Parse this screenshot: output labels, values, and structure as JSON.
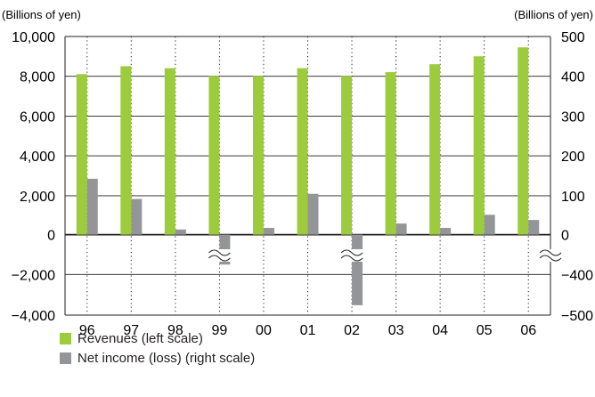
{
  "chart_data": {
    "type": "bar",
    "categories": [
      "96",
      "97",
      "98",
      "99",
      "00",
      "01",
      "02",
      "03",
      "04",
      "05",
      "06"
    ],
    "series": [
      {
        "name": "Revenues (left scale)",
        "axis": "left",
        "color": "#9ccc3c",
        "values": [
          8100,
          8500,
          8400,
          8000,
          8000,
          8400,
          8000,
          8200,
          8600,
          9000,
          9450
        ]
      },
      {
        "name": "Net income (loss) (right scale)",
        "axis": "right",
        "color": "#939598",
        "values": [
          141,
          90,
          13,
          -80,
          17,
          103,
          -376,
          28,
          17,
          50,
          37
        ]
      }
    ],
    "left_axis": {
      "unit": "(Billions of yen)",
      "ylim": [
        -4000,
        10000
      ],
      "ticks": [
        "10,000",
        "8,000",
        "6,000",
        "4,000",
        "2,000",
        "0",
        "−2,000",
        "−4,000"
      ]
    },
    "right_axis": {
      "unit": "(Billions of yen)",
      "ticks": [
        "500",
        "400",
        "300",
        "200",
        "100",
        "0",
        "−400",
        "−500"
      ],
      "axis_break": true
    },
    "grid": true,
    "legend_position": "bottom-left"
  },
  "colors": {
    "revenue": "#9ccc3c",
    "net_income": "#939598",
    "axis": "#231f20"
  }
}
